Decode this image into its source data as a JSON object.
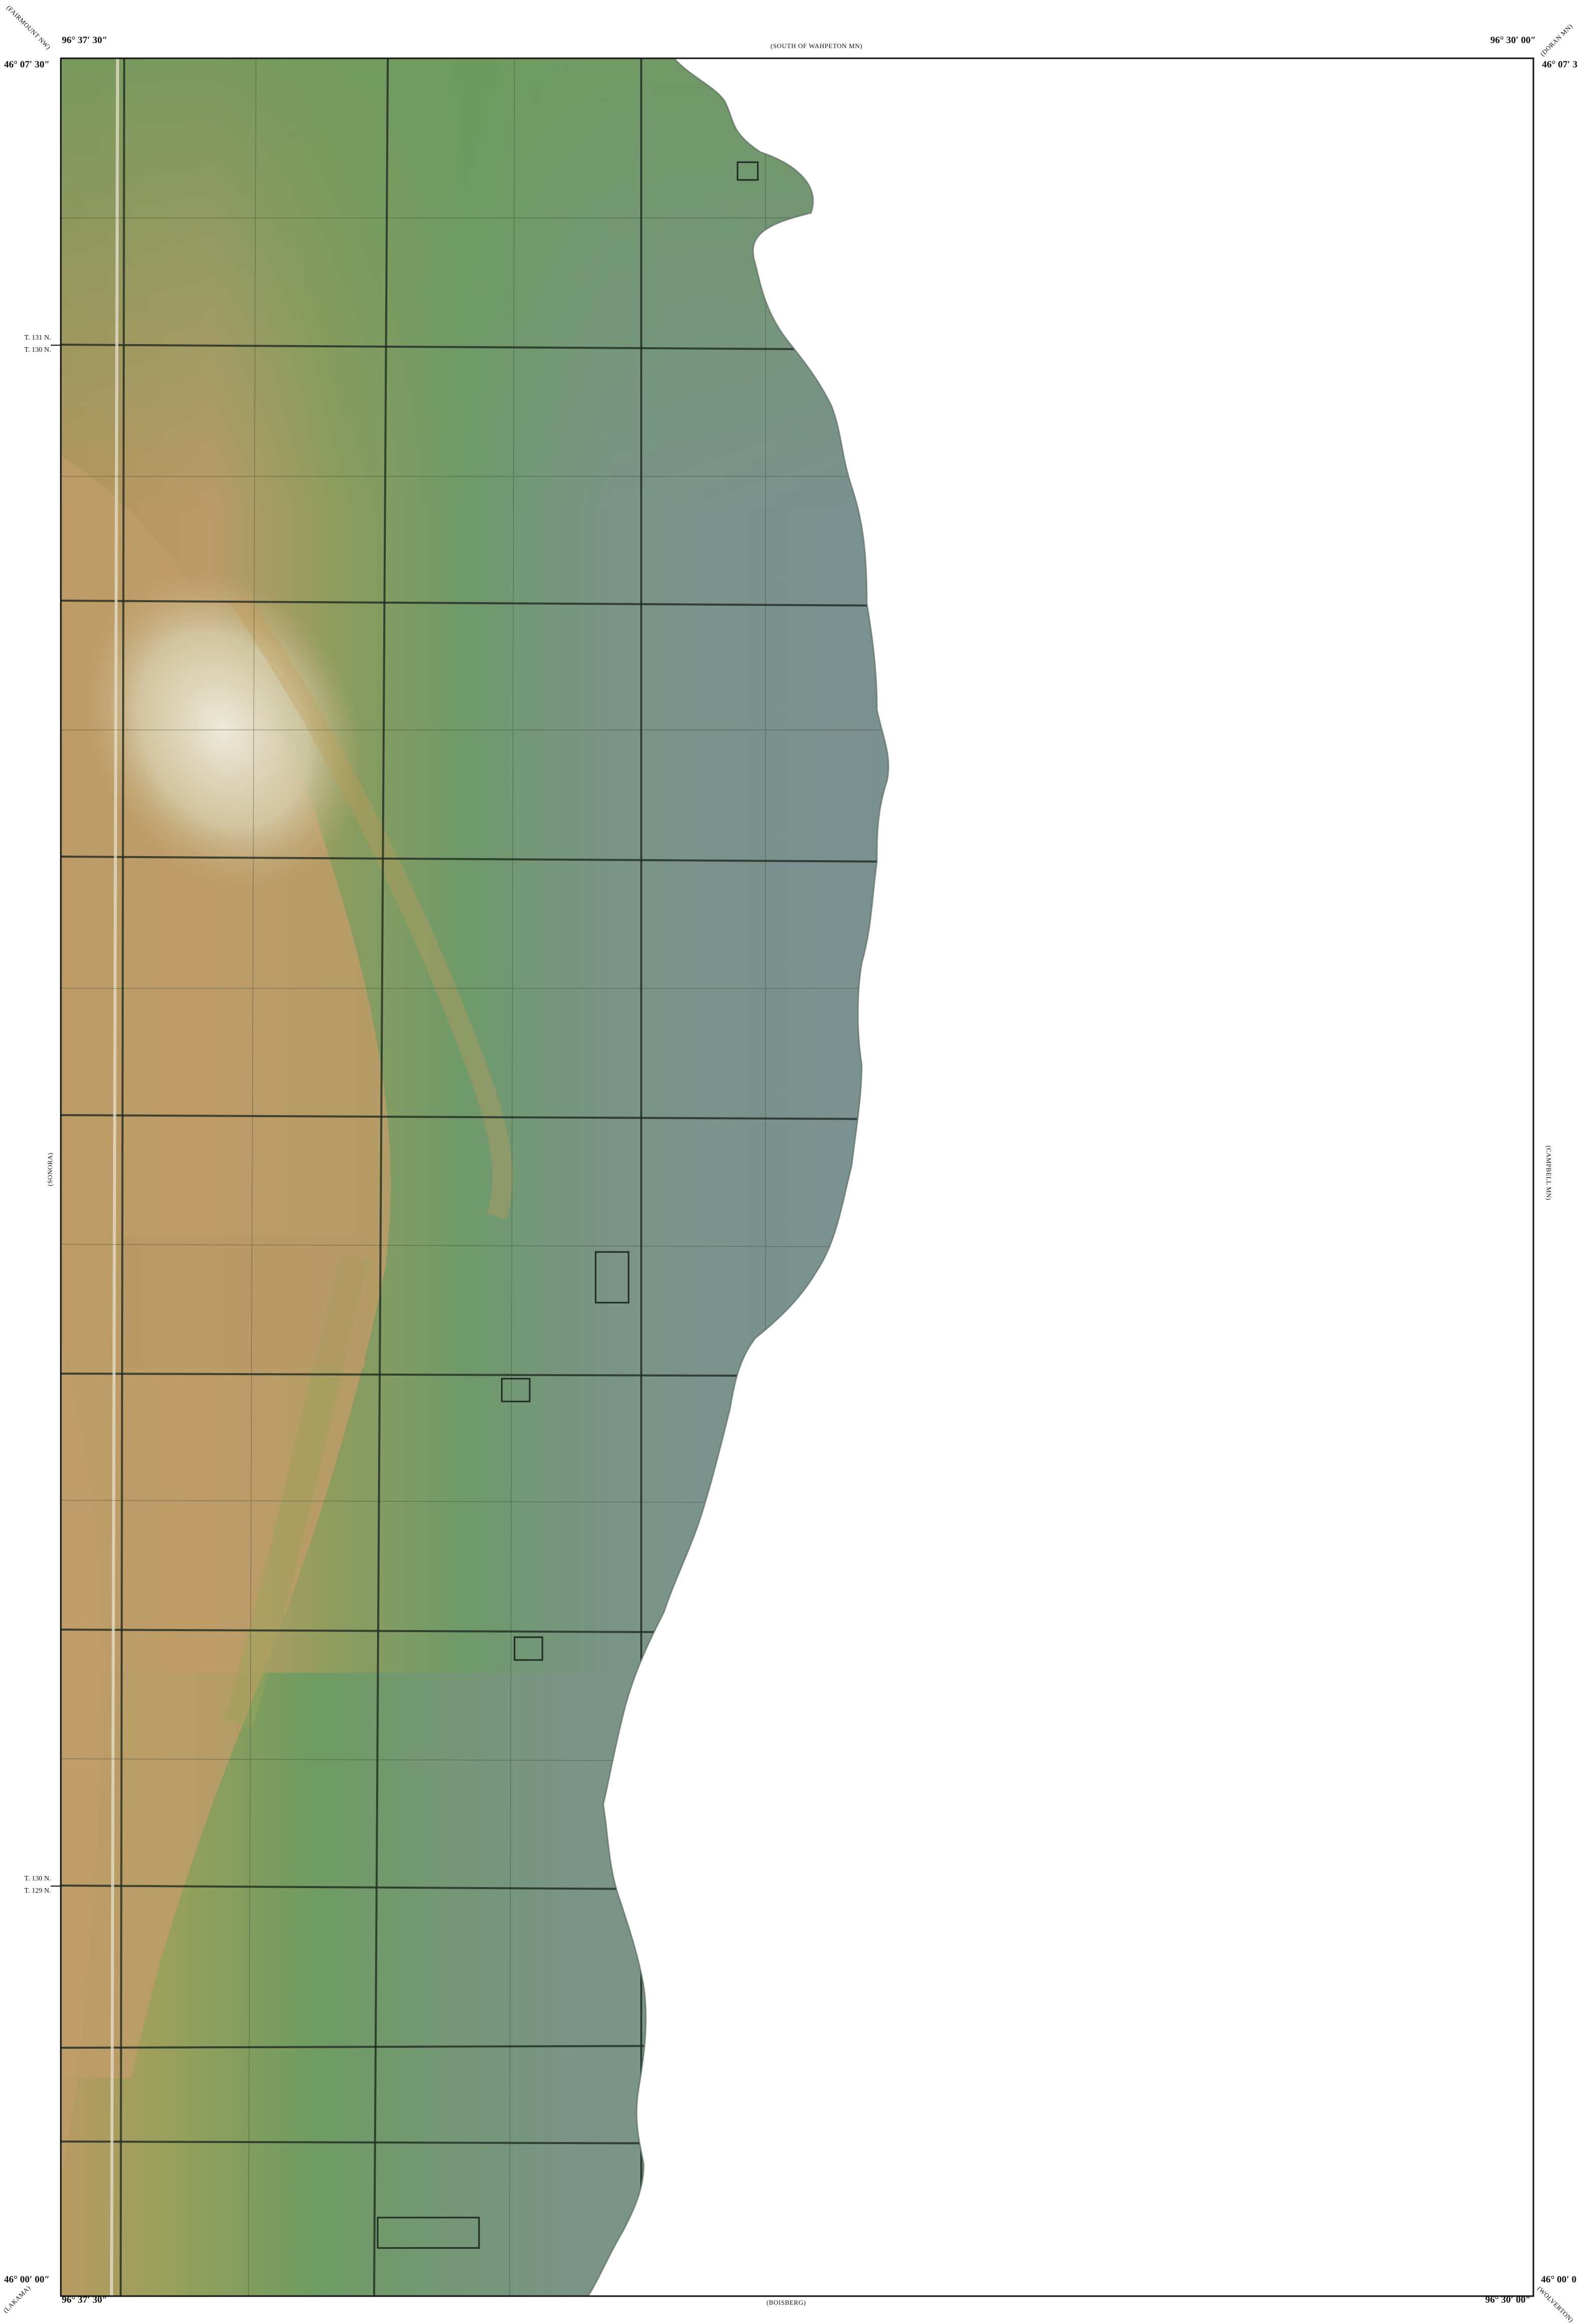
{
  "corners": {
    "top_left_lon": "96° 37′ 30″",
    "top_left_lat": "46° 07′ 30″",
    "top_right_lon": "96° 30′ 00″",
    "top_right_lat": "46° 07′ 3",
    "bottom_left_lon": "96° 37′ 30″",
    "bottom_left_lat": "46° 00′ 00″",
    "bottom_right_lon": "96° 30′ 00″",
    "bottom_right_lat": "46° 00′ 0"
  },
  "adjacent_quads": {
    "north": "(SOUTH OF WAHPETON MN)",
    "south": "(BOISBERG)",
    "west": "(SONORA)",
    "east": "(CAMPBELL MN)",
    "northwest": "(FAIRMOUNT NW)",
    "northeast": "(DORAN MN)",
    "southwest": "(LAKAMA)",
    "southeast": "(WOLVERTON)"
  },
  "township_labels": {
    "upper_a": "T. 131 N.",
    "upper_b": "T. 130 N.",
    "lower_a": "T. 130 N.",
    "lower_b": "T. 129 N."
  },
  "colors": {
    "lowland": "#7d9292",
    "midland": "#6e9a66",
    "highland": "#b99a6a",
    "ridge": "#e8e3d3",
    "grid_line": "#1f2a20",
    "frame": "#111111"
  }
}
